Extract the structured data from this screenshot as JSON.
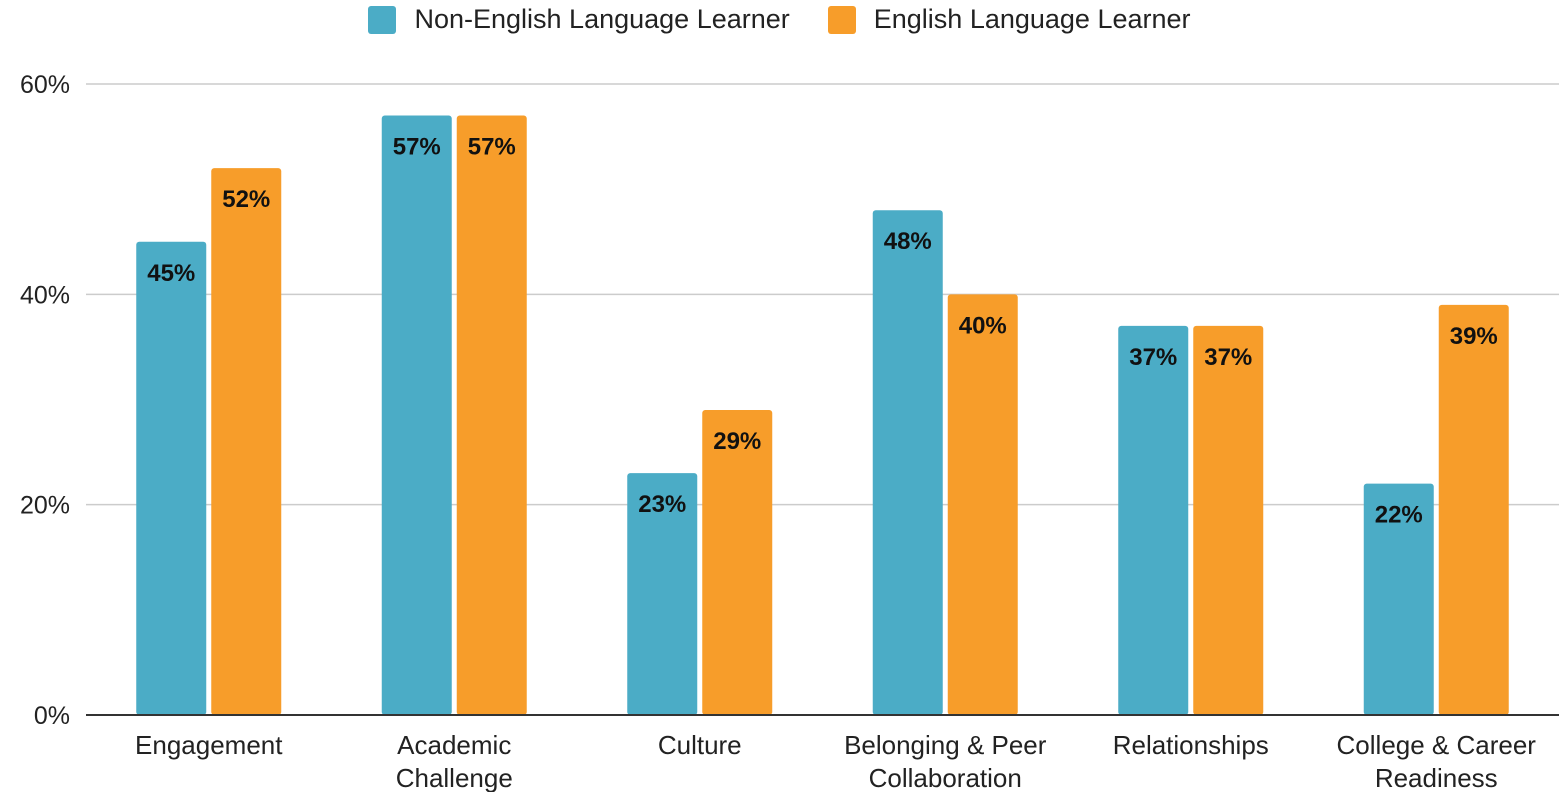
{
  "chart_data": {
    "type": "bar",
    "categories": [
      [
        "Engagement"
      ],
      [
        "Academic",
        "Challenge"
      ],
      [
        "Culture"
      ],
      [
        "Belonging & Peer",
        "Collaboration"
      ],
      [
        "Relationships"
      ],
      [
        "College & Career",
        "Readiness"
      ]
    ],
    "series": [
      {
        "name": "Non-English Language Learner",
        "color": "#4bacc6",
        "values": [
          45,
          57,
          23,
          48,
          37,
          22
        ],
        "labels": [
          "45%",
          "57%",
          "23%",
          "48%",
          "37%",
          "22%"
        ]
      },
      {
        "name": "English Language Learner",
        "color": "#f79d2a",
        "values": [
          52,
          57,
          29,
          40,
          37,
          39
        ],
        "labels": [
          "52%",
          "57%",
          "29%",
          "40%",
          "37%",
          "39%"
        ]
      }
    ],
    "ylim": [
      0,
      60
    ],
    "yticks": [
      0,
      20,
      40,
      60
    ],
    "ytick_labels": [
      "0%",
      "20%",
      "40%",
      "60%"
    ],
    "grid": true,
    "legend_position": "top-center",
    "title": "",
    "xlabel": "",
    "ylabel": ""
  }
}
